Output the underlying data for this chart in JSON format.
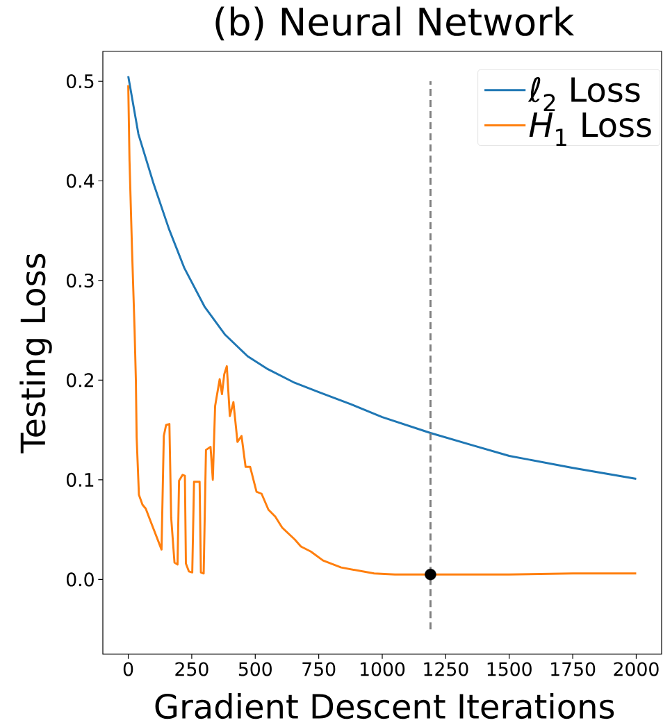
{
  "chart_data": {
    "type": "line",
    "title": "(b) Neural Network",
    "xlabel": "Gradient Descent Iterations",
    "ylabel": "Testing Loss",
    "xlim": [
      -100,
      2100
    ],
    "ylim": [
      -0.075,
      0.53
    ],
    "xticks": [
      0,
      250,
      500,
      750,
      1000,
      1250,
      1500,
      1750,
      2000
    ],
    "yticks": [
      {
        "value": 0,
        "label": "0.0"
      },
      0.1,
      0.2,
      0.3,
      0.4,
      0.5
    ],
    "legend": "top right",
    "grid": false,
    "series": [
      {
        "name": "ℓ$_{2}$ Loss",
        "color": "#1f77b4",
        "type": "line",
        "x": [
          0,
          40,
          100,
          160,
          220,
          300,
          380,
          470,
          550,
          650,
          750,
          875,
          1000,
          1190,
          1350,
          1500,
          1750,
          2000
        ],
        "values": [
          0.505,
          0.447,
          0.397,
          0.352,
          0.313,
          0.274,
          0.246,
          0.224,
          0.211,
          0.198,
          0.188,
          0.176,
          0.163,
          0.147,
          0.135,
          0.124,
          0.112,
          0.101
        ]
      },
      {
        "name": "*H*$_{1}$ Loss",
        "color": "#ff7f0e",
        "type": "line",
        "x": [
          0,
          5,
          15,
          25,
          30,
          33,
          42,
          56,
          69,
          87,
          131,
          140,
          149,
          162,
          169,
          182,
          194,
          200,
          214,
          223,
          227,
          239,
          252,
          259,
          281,
          286,
          297,
          306,
          324,
          333,
          342,
          348,
          360,
          369,
          378,
          388,
          400,
          414,
          430,
          446,
          462,
          480,
          505,
          525,
          552,
          579,
          606,
          656,
          680,
          719,
          767,
          838,
          968,
          1050,
          1500,
          1750,
          2000
        ],
        "values": [
          0.496,
          0.42,
          0.33,
          0.25,
          0.2,
          0.143,
          0.085,
          0.075,
          0.071,
          0.059,
          0.03,
          0.144,
          0.155,
          0.156,
          0.062,
          0.017,
          0.015,
          0.099,
          0.105,
          0.104,
          0.016,
          0.008,
          0.007,
          0.098,
          0.098,
          0.007,
          0.006,
          0.13,
          0.133,
          0.1,
          0.174,
          0.183,
          0.201,
          0.186,
          0.206,
          0.214,
          0.164,
          0.178,
          0.138,
          0.144,
          0.113,
          0.113,
          0.088,
          0.086,
          0.07,
          0.063,
          0.052,
          0.04,
          0.033,
          0.028,
          0.019,
          0.012,
          0.006,
          0.005,
          0.005,
          0.006,
          0.006
        ]
      },
      {
        "color": "#808080",
        "type": "line",
        "line_style": "dashed",
        "x": [
          1190,
          1190
        ],
        "values": [
          -0.05,
          0.5
        ]
      },
      {
        "color": "#000000",
        "type": "scatter",
        "marker": "circle",
        "x": [
          1190
        ],
        "values": [
          0.005
        ]
      }
    ]
  }
}
